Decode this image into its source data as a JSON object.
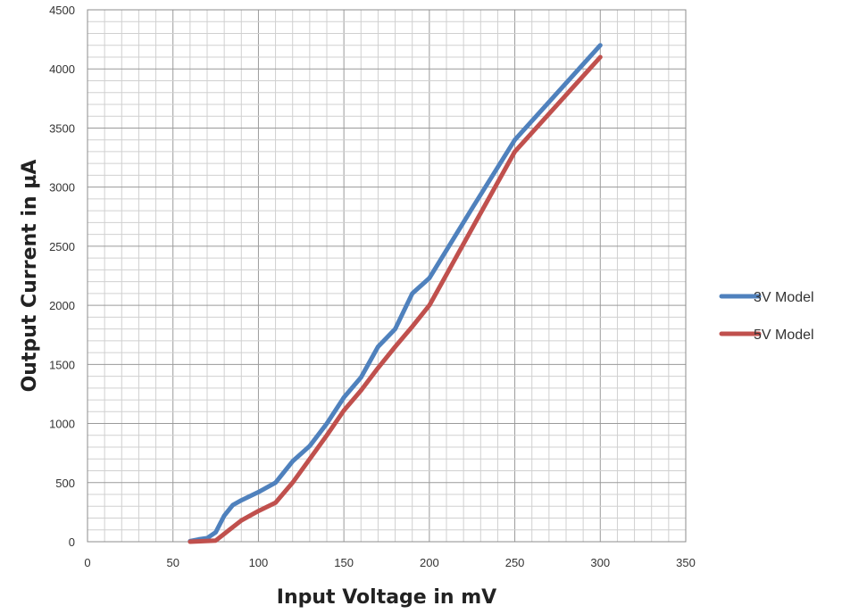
{
  "chart_data": {
    "type": "line",
    "title": "",
    "xlabel": "Input Voltage in mV",
    "ylabel": "Output Current in µA",
    "xlim": [
      0,
      350
    ],
    "ylim": [
      0,
      4500
    ],
    "xticks": [
      0,
      50,
      100,
      150,
      200,
      250,
      300,
      350
    ],
    "yticks": [
      0,
      500,
      1000,
      1500,
      2000,
      2500,
      3000,
      3500,
      4000,
      4500
    ],
    "grid": true,
    "legend_position": "right",
    "series": [
      {
        "name": "3V Model",
        "color": "#4F81BD",
        "x": [
          60,
          65,
          70,
          75,
          80,
          85,
          90,
          100,
          110,
          120,
          130,
          140,
          150,
          160,
          170,
          180,
          190,
          200,
          225,
          250,
          300
        ],
        "values": [
          5,
          20,
          30,
          80,
          220,
          310,
          350,
          420,
          500,
          680,
          810,
          1000,
          1220,
          1390,
          1650,
          1800,
          2100,
          2230,
          2820,
          3400,
          4200
        ]
      },
      {
        "name": "5V Model",
        "color": "#C0504D",
        "x": [
          60,
          75,
          90,
          100,
          110,
          120,
          130,
          140,
          150,
          160,
          170,
          180,
          190,
          200,
          225,
          250,
          300
        ],
        "values": [
          0,
          10,
          180,
          260,
          330,
          500,
          700,
          900,
          1110,
          1280,
          1470,
          1650,
          1820,
          2000,
          2650,
          3300,
          4100
        ]
      }
    ]
  }
}
